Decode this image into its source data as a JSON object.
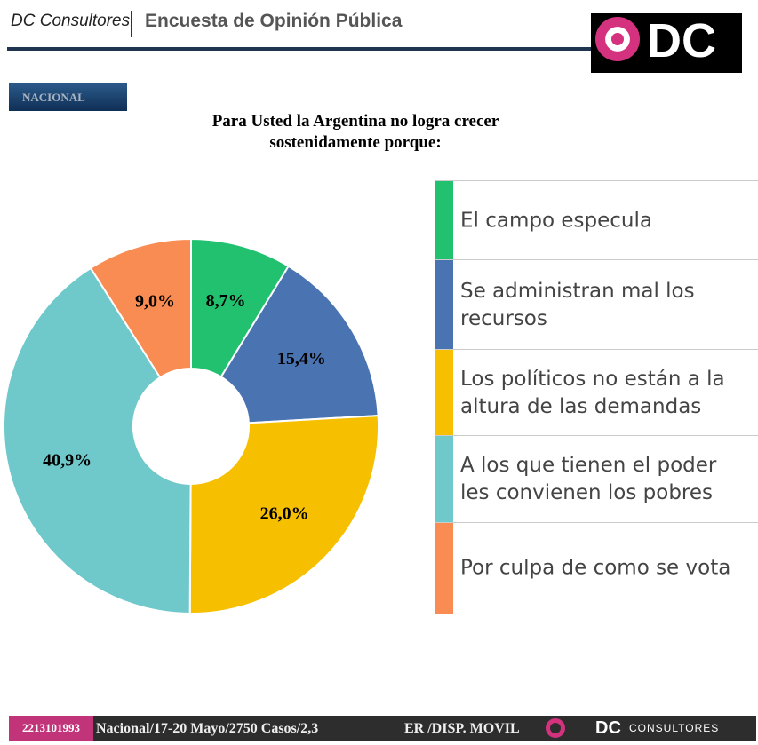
{
  "header": {
    "brand": "DC Consultores",
    "title": "Encuesta de Opinión Pública",
    "logo": "DC"
  },
  "section": "NACIONAL",
  "chart_data": {
    "type": "donut",
    "title": "Para Usted la Argentina no logra crecer sostenidamente porque:",
    "categories": [
      "El campo especula",
      "Se administran mal los recursos",
      "Los políticos no están a la altura de las demandas",
      "A los que tienen el poder les convienen los pobres",
      "Por culpa de como se vota"
    ],
    "values": [
      8.7,
      15.4,
      26.0,
      40.9,
      9.0
    ],
    "value_labels": [
      "8,7%",
      "15,4%",
      "26,0%",
      "40,9%",
      "9,0%"
    ],
    "colors": [
      "#21c170",
      "#4a74b1",
      "#f6c000",
      "#6fc8ca",
      "#f88c52"
    ]
  },
  "footer": {
    "phone": "2213101993",
    "info": "Nacional/17-20 Mayo/2750 Casos/2,3",
    "mode": "ER /DISP. MOVIL",
    "logo": "DC",
    "logo_sub": "CONSULTORES"
  }
}
